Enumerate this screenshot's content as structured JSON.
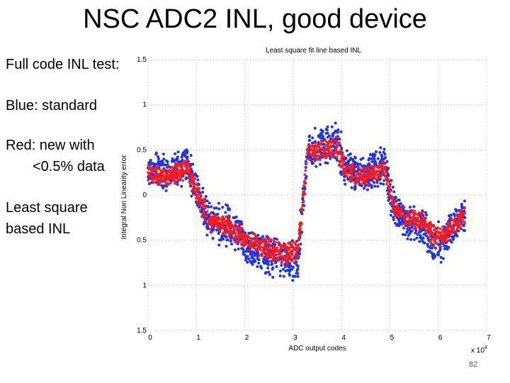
{
  "slide": {
    "title": "NSC ADC2 INL, good device",
    "notes": [
      "Full code INL test:",
      "Blue: standard",
      "Red: new with",
      "<0.5% data",
      "Least square",
      "based INL"
    ],
    "page_number": "82"
  },
  "chart_data": {
    "type": "scatter",
    "title": "Least square fit line based INL",
    "xlabel": "ADC output codes",
    "ylabel": "Integral Non Linearity error",
    "x_multiplier_label": "x 10",
    "x_multiplier_exp": "4",
    "xlim": [
      0,
      7
    ],
    "ylim": [
      -1.5,
      1.5
    ],
    "xticks": [
      0,
      1,
      2,
      3,
      4,
      5,
      6,
      7
    ],
    "yticks": [
      1.5,
      1,
      0.5,
      0,
      -0.5,
      -1,
      -1.5
    ],
    "ytick_labels": [
      "1.5",
      "1",
      "0.5",
      "0",
      "0.5",
      "1",
      "1.5"
    ],
    "grid": true,
    "colors": {
      "standard": "#1f33e8",
      "new": "#ff1a1a"
    },
    "series": [
      {
        "key": "standard",
        "x": [
          0.0,
          0.4,
          0.8,
          1.05,
          1.3,
          1.7,
          2.0,
          2.5,
          2.9,
          3.1,
          3.3,
          3.7,
          3.9,
          4.1,
          4.5,
          4.9,
          5.05,
          5.3,
          5.7,
          5.9,
          6.1,
          6.4,
          6.55
        ],
        "y": [
          0.3,
          0.25,
          0.35,
          -0.05,
          -0.3,
          -0.35,
          -0.55,
          -0.65,
          -0.75,
          -0.7,
          0.5,
          0.55,
          0.6,
          0.3,
          0.2,
          0.35,
          -0.1,
          -0.3,
          -0.35,
          -0.55,
          -0.5,
          -0.3,
          -0.25
        ],
        "spread": [
          0.18,
          0.2,
          0.2,
          0.22,
          0.2,
          0.22,
          0.2,
          0.22,
          0.22,
          0.2,
          0.2,
          0.2,
          0.22,
          0.2,
          0.2,
          0.2,
          0.2,
          0.18,
          0.2,
          0.22,
          0.2,
          0.2,
          0.2
        ]
      },
      {
        "key": "new",
        "x": [
          0.0,
          0.4,
          0.8,
          1.05,
          1.3,
          1.7,
          2.0,
          2.5,
          2.9,
          3.1,
          3.3,
          3.7,
          3.9,
          4.1,
          4.5,
          4.9,
          5.05,
          5.3,
          5.7,
          5.9,
          6.1,
          6.4,
          6.55
        ],
        "y": [
          0.25,
          0.2,
          0.3,
          -0.05,
          -0.3,
          -0.35,
          -0.5,
          -0.6,
          -0.65,
          -0.6,
          0.5,
          0.5,
          0.55,
          0.25,
          0.2,
          0.3,
          -0.1,
          -0.25,
          -0.3,
          -0.45,
          -0.45,
          -0.3,
          -0.2
        ],
        "spread": [
          0.1,
          0.1,
          0.12,
          0.12,
          0.1,
          0.12,
          0.1,
          0.12,
          0.12,
          0.1,
          0.1,
          0.1,
          0.12,
          0.1,
          0.1,
          0.1,
          0.1,
          0.1,
          0.1,
          0.12,
          0.1,
          0.1,
          0.1
        ]
      }
    ]
  }
}
